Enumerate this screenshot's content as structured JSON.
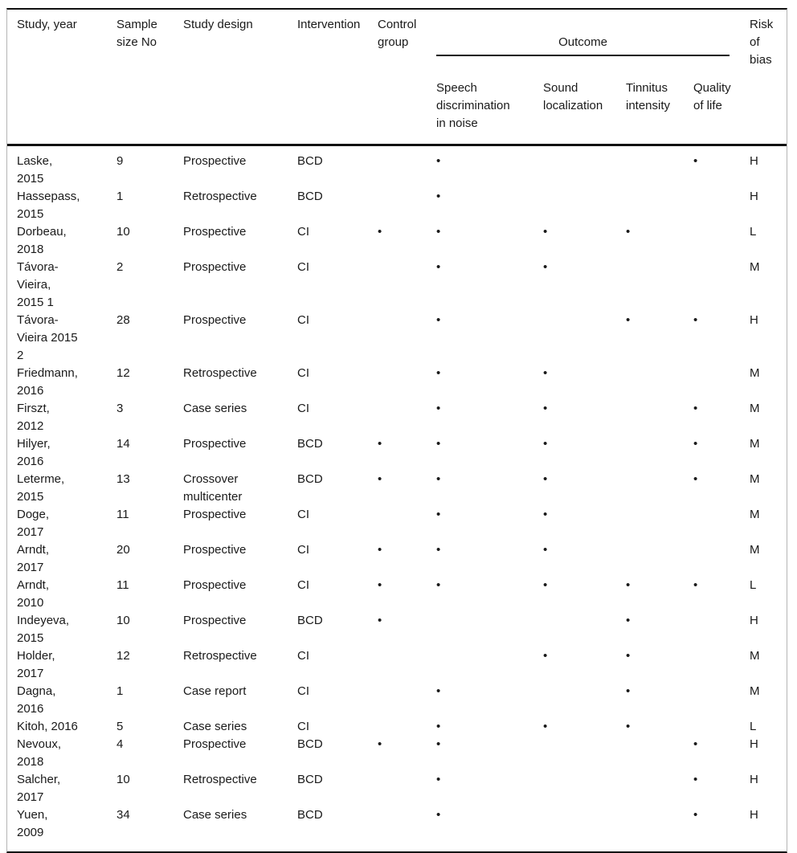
{
  "table": {
    "dot": "•",
    "header": {
      "study": "Study, year",
      "sample": "Sample\nsize No",
      "design": "Study design",
      "intervention": "Intervention",
      "control": "Control\ngroup",
      "outcome_group": "Outcome",
      "speech": "Speech\ndiscrimination\nin noise",
      "sound": "Sound\nlocalization",
      "tinnitus": "Tinnitus\nintensity",
      "quality": "Quality\nof life",
      "risk": "Risk\nof\nbias"
    },
    "rows": [
      {
        "study": "Laske,\n2015",
        "sample": "9",
        "design": "Prospective",
        "intervention": "BCD",
        "control": false,
        "speech": true,
        "sound": false,
        "tinnitus": false,
        "quality": true,
        "risk": "H"
      },
      {
        "study": "Hassepass,\n2015",
        "sample": "1",
        "design": "Retrospective",
        "intervention": "BCD",
        "control": false,
        "speech": true,
        "sound": false,
        "tinnitus": false,
        "quality": false,
        "risk": "H"
      },
      {
        "study": "Dorbeau,\n2018",
        "sample": "10",
        "design": "Prospective",
        "intervention": "CI",
        "control": true,
        "speech": true,
        "sound": true,
        "tinnitus": true,
        "quality": false,
        "risk": "L"
      },
      {
        "study": "Távora-\nVieira,\n2015 1",
        "sample": "2",
        "design": "Prospective",
        "intervention": "CI",
        "control": false,
        "speech": true,
        "sound": true,
        "tinnitus": false,
        "quality": false,
        "risk": "M"
      },
      {
        "study": "Távora-\nVieira 2015\n2",
        "sample": "28",
        "design": "Prospective",
        "intervention": "CI",
        "control": false,
        "speech": true,
        "sound": false,
        "tinnitus": true,
        "quality": true,
        "risk": "H"
      },
      {
        "study": "Friedmann,\n2016",
        "sample": "12",
        "design": "Retrospective",
        "intervention": "CI",
        "control": false,
        "speech": true,
        "sound": true,
        "tinnitus": false,
        "quality": false,
        "risk": "M"
      },
      {
        "study": "Firszt,\n2012",
        "sample": "3",
        "design": "Case series",
        "intervention": "CI",
        "control": false,
        "speech": true,
        "sound": true,
        "tinnitus": false,
        "quality": true,
        "risk": "M"
      },
      {
        "study": "Hilyer,\n2016",
        "sample": "14",
        "design": "Prospective",
        "intervention": "BCD",
        "control": true,
        "speech": true,
        "sound": true,
        "tinnitus": false,
        "quality": true,
        "risk": "M"
      },
      {
        "study": "Leterme,\n2015",
        "sample": "13",
        "design": "Crossover\nmulticenter",
        "intervention": "BCD",
        "control": true,
        "speech": true,
        "sound": true,
        "tinnitus": false,
        "quality": true,
        "risk": "M"
      },
      {
        "study": "Doge,\n2017",
        "sample": "11",
        "design": "Prospective",
        "intervention": "CI",
        "control": false,
        "speech": true,
        "sound": true,
        "tinnitus": false,
        "quality": false,
        "risk": "M"
      },
      {
        "study": "Arndt,\n2017",
        "sample": "20",
        "design": "Prospective",
        "intervention": "CI",
        "control": true,
        "speech": true,
        "sound": true,
        "tinnitus": false,
        "quality": false,
        "risk": "M"
      },
      {
        "study": "Arndt,\n2010",
        "sample": "11",
        "design": "Prospective",
        "intervention": "CI",
        "control": true,
        "speech": true,
        "sound": true,
        "tinnitus": true,
        "quality": true,
        "risk": "L"
      },
      {
        "study": "Indeyeva,\n2015",
        "sample": "10",
        "design": "Prospective",
        "intervention": "BCD",
        "control": true,
        "speech": false,
        "sound": false,
        "tinnitus": true,
        "quality": false,
        "risk": "H"
      },
      {
        "study": "Holder,\n2017",
        "sample": "12",
        "design": "Retrospective",
        "intervention": "CI",
        "control": false,
        "speech": false,
        "sound": true,
        "tinnitus": true,
        "quality": false,
        "risk": "M"
      },
      {
        "study": "Dagna,\n2016",
        "sample": "1",
        "design": "Case report",
        "intervention": "CI",
        "control": false,
        "speech": true,
        "sound": false,
        "tinnitus": true,
        "quality": false,
        "risk": "M"
      },
      {
        "study": "Kitoh, 2016",
        "sample": "5",
        "design": "Case series",
        "intervention": "CI",
        "control": false,
        "speech": true,
        "sound": true,
        "tinnitus": true,
        "quality": false,
        "risk": "L"
      },
      {
        "study": "Nevoux,\n2018",
        "sample": "4",
        "design": "Prospective",
        "intervention": "BCD",
        "control": true,
        "speech": true,
        "sound": false,
        "tinnitus": false,
        "quality": true,
        "risk": "H"
      },
      {
        "study": "Salcher,\n2017",
        "sample": "10",
        "design": "Retrospective",
        "intervention": "BCD",
        "control": false,
        "speech": true,
        "sound": false,
        "tinnitus": false,
        "quality": true,
        "risk": "H"
      },
      {
        "study": "Yuen,\n2009",
        "sample": "34",
        "design": "Case series",
        "intervention": "BCD",
        "control": false,
        "speech": true,
        "sound": false,
        "tinnitus": false,
        "quality": true,
        "risk": "H"
      }
    ]
  },
  "colors": {
    "rule": "#111111",
    "frame_border": "#b4b4b4",
    "text": "#1a1a1a",
    "background": "#ffffff"
  }
}
